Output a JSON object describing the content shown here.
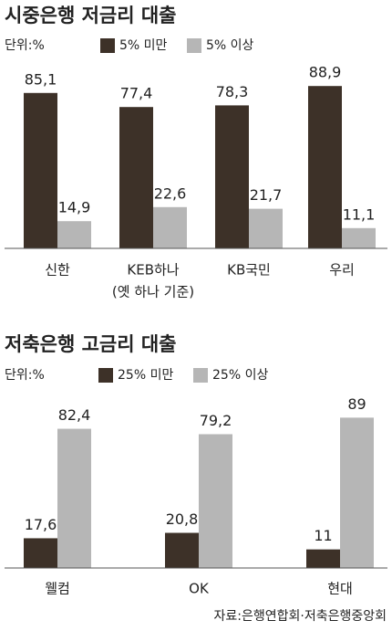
{
  "chart_data": [
    {
      "type": "bar",
      "title": "시중은행 저금리 대출",
      "unit": "단위:%",
      "categories": [
        "신한",
        "KEB하나",
        "KB국민",
        "우리"
      ],
      "category_note": "(옛 하나 기준)",
      "series": [
        {
          "name": "5% 미만",
          "color": "#3d3128",
          "values": [
            85.1,
            77.4,
            78.3,
            88.9
          ],
          "value_labels": [
            "85,1",
            "77,4",
            "78,3",
            "88,9"
          ]
        },
        {
          "name": "5% 이상",
          "color": "#b6b6b6",
          "values": [
            14.9,
            22.6,
            21.7,
            11.1
          ],
          "value_labels": [
            "14,9",
            "22,6",
            "21,7",
            "11,1"
          ]
        }
      ]
    },
    {
      "type": "bar",
      "title": "저축은행 고금리 대출",
      "unit": "단위:%",
      "categories": [
        "웰컴",
        "OK",
        "현대"
      ],
      "series": [
        {
          "name": "25% 미만",
          "color": "#3d3128",
          "values": [
            17.6,
            20.8,
            11
          ],
          "value_labels": [
            "17,6",
            "20,8",
            "11"
          ]
        },
        {
          "name": "25% 이상",
          "color": "#b6b6b6",
          "values": [
            82.4,
            79.2,
            89
          ],
          "value_labels": [
            "82,4",
            "79,2",
            "89"
          ]
        }
      ]
    }
  ],
  "source": "자료:은행연합회·저축은행중앙회"
}
